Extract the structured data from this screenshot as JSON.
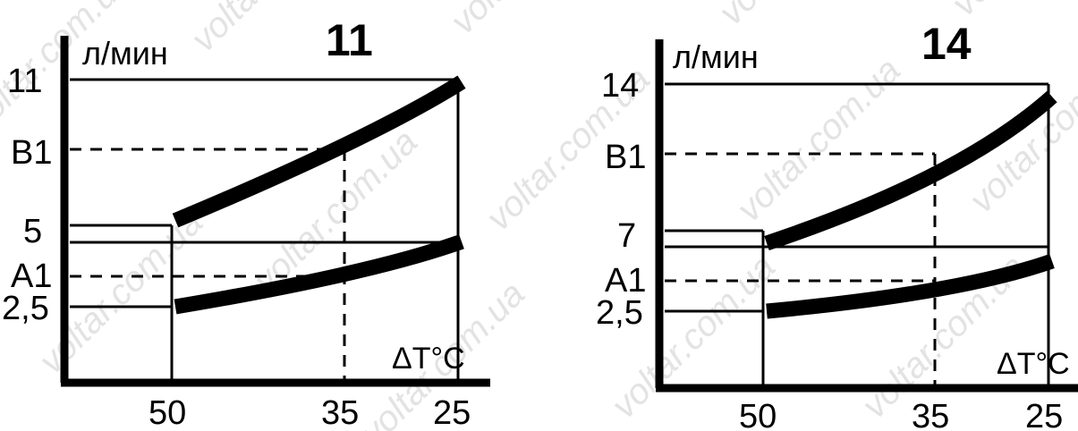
{
  "chart_data": [
    {
      "type": "line",
      "title": "11",
      "ylabel": "л/мин",
      "xlabel": "ΔT°C",
      "x_ticks": [
        "50",
        "35",
        "25"
      ],
      "y_ticks": [
        "11",
        "В1",
        "5",
        "А1",
        "2,5"
      ],
      "series": [
        {
          "x": [
            50,
            35,
            25
          ],
          "values": [
            5.2,
            8.3,
            10.9
          ]
        },
        {
          "x": [
            50,
            35,
            25
          ],
          "values": [
            2.5,
            3.5,
            4.5
          ]
        }
      ]
    },
    {
      "type": "line",
      "title": "14",
      "ylabel": "л/мин",
      "xlabel": "ΔT°C",
      "x_ticks": [
        "50",
        "35",
        "25"
      ],
      "y_ticks": [
        "14",
        "В1",
        "7",
        "А1",
        "2,5"
      ],
      "series": [
        {
          "x": [
            50,
            35,
            25
          ],
          "values": [
            6.3,
            9.7,
            13.4
          ]
        },
        {
          "x": [
            50,
            35,
            25
          ],
          "values": [
            2.5,
            3.7,
            5.3
          ]
        }
      ]
    }
  ],
  "watermark": "voltar.com.ua"
}
